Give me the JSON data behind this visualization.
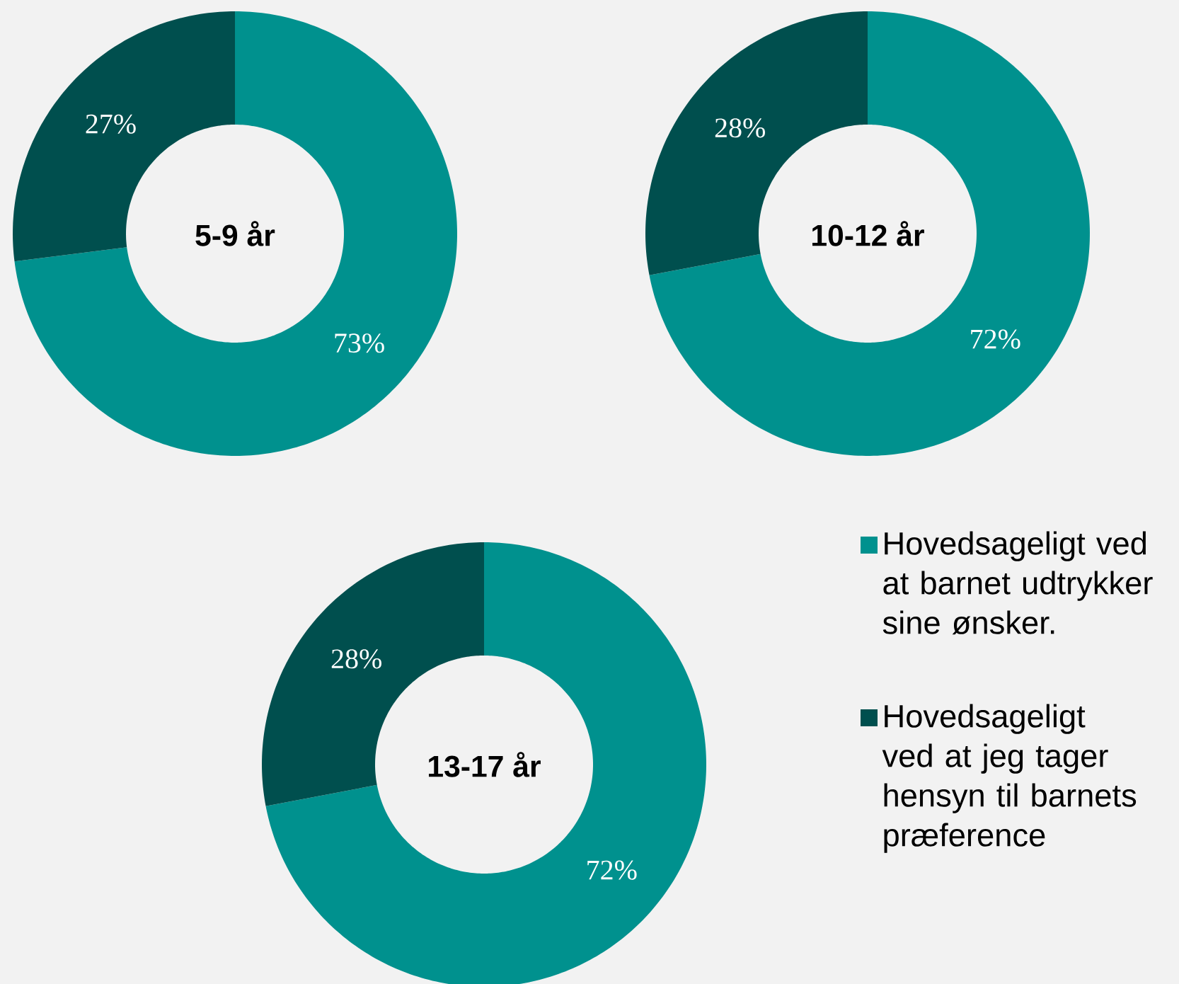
{
  "chart_data": [
    {
      "type": "donut",
      "title": "5-9 år",
      "categories": [
        null,
        null
      ],
      "values": [
        73,
        27
      ],
      "colors": [
        "#00918e",
        "#004f4e"
      ],
      "value_labels": [
        "73%",
        "27%"
      ]
    },
    {
      "type": "donut",
      "title": "10-12 år",
      "categories": [
        null,
        null
      ],
      "values": [
        72,
        28
      ],
      "colors": [
        "#00918e",
        "#004f4e"
      ],
      "value_labels": [
        "72%",
        "28%"
      ]
    },
    {
      "type": "donut",
      "title": "13-17 år",
      "categories": [
        "Hovedsageligt ved at barnet udtrykker sine ønsker.",
        "Hovedsageligt ved at jeg tager hensyn til barnets præference"
      ],
      "values": [
        72,
        28
      ],
      "colors": [
        "#00918e",
        "#004f4e"
      ],
      "value_labels": [
        "72%",
        "28%"
      ],
      "legend": "right"
    }
  ]
}
